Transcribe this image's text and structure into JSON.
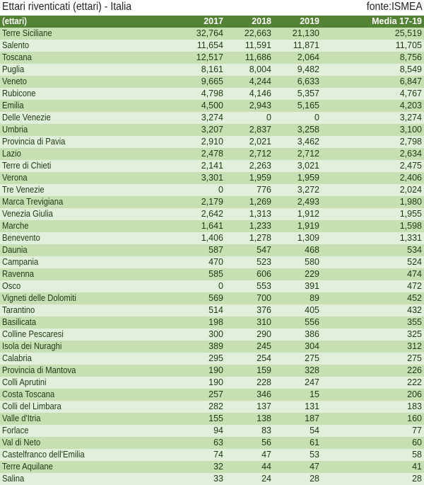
{
  "title": "Ettari riventicati (ettari) - Italia",
  "source": "fonte:ISMEA",
  "colors": {
    "header": "#548235",
    "row_odd": "#c6e0b4",
    "row_even": "#e2efda"
  },
  "table": {
    "headers": [
      "(ettari)",
      "2017",
      "2018",
      "2019",
      "Media 17-19"
    ],
    "rows": [
      [
        "Terre Siciliane",
        "32,764",
        "22,663",
        "21,130",
        "25,519"
      ],
      [
        "Salento",
        "11,654",
        "11,591",
        "11,871",
        "11,705"
      ],
      [
        "Toscana",
        "12,517",
        "11,686",
        "2,064",
        "8,756"
      ],
      [
        "Puglia",
        "8,161",
        "8,004",
        "9,482",
        "8,549"
      ],
      [
        "Veneto",
        "9,665",
        "4,244",
        "6,633",
        "6,847"
      ],
      [
        "Rubicone",
        "4,798",
        "4,146",
        "5,357",
        "4,767"
      ],
      [
        "Emilia",
        "4,500",
        "2,943",
        "5,165",
        "4,203"
      ],
      [
        "Delle Venezie",
        "3,274",
        "0",
        "0",
        "3,274"
      ],
      [
        "Umbria",
        "3,207",
        "2,837",
        "3,258",
        "3,100"
      ],
      [
        "Provincia di Pavia",
        "2,910",
        "2,021",
        "3,462",
        "2,798"
      ],
      [
        "Lazio",
        "2,478",
        "2,712",
        "2,712",
        "2,634"
      ],
      [
        "Terre di Chieti",
        "2,141",
        "2,263",
        "3,021",
        "2,475"
      ],
      [
        "Verona",
        "3,301",
        "1,959",
        "1,959",
        "2,406"
      ],
      [
        "Tre Venezie",
        "0",
        "776",
        "3,272",
        "2,024"
      ],
      [
        "Marca Trevigiana",
        "2,179",
        "1,269",
        "2,493",
        "1,980"
      ],
      [
        "Venezia Giulia",
        "2,642",
        "1,313",
        "1,912",
        "1,955"
      ],
      [
        "Marche",
        "1,641",
        "1,233",
        "1,919",
        "1,598"
      ],
      [
        "Benevento",
        "1,406",
        "1,278",
        "1,309",
        "1,331"
      ],
      [
        "Daunia",
        "587",
        "547",
        "468",
        "534"
      ],
      [
        "Campania",
        "470",
        "523",
        "580",
        "524"
      ],
      [
        "Ravenna",
        "585",
        "606",
        "229",
        "474"
      ],
      [
        "Osco",
        "0",
        "553",
        "391",
        "472"
      ],
      [
        "Vigneti delle Dolomiti",
        "569",
        "700",
        "89",
        "452"
      ],
      [
        "Tarantino",
        "514",
        "376",
        "405",
        "432"
      ],
      [
        "Basilicata",
        "198",
        "310",
        "556",
        "355"
      ],
      [
        "Colline Pescaresi",
        "300",
        "290",
        "386",
        "325"
      ],
      [
        "Isola dei Nuraghi",
        "389",
        "245",
        "304",
        "312"
      ],
      [
        "Calabria",
        "295",
        "254",
        "275",
        "275"
      ],
      [
        "Provincia di Mantova",
        "190",
        "159",
        "328",
        "226"
      ],
      [
        "Colli Aprutini",
        "190",
        "228",
        "247",
        "222"
      ],
      [
        "Costa Toscana",
        "257",
        "346",
        "15",
        "206"
      ],
      [
        "Colli del Limbara",
        "282",
        "137",
        "131",
        "183"
      ],
      [
        "Valle d'Itria",
        "155",
        "138",
        "187",
        "160"
      ],
      [
        "Forlace",
        "94",
        "83",
        "54",
        "77"
      ],
      [
        "Val di Neto",
        "63",
        "56",
        "61",
        "60"
      ],
      [
        "Castelfranco dell'Emilia",
        "74",
        "47",
        "53",
        "58"
      ],
      [
        "Terre Aquilane",
        "32",
        "44",
        "47",
        "41"
      ],
      [
        "Salina",
        "33",
        "24",
        "28",
        "28"
      ]
    ]
  }
}
